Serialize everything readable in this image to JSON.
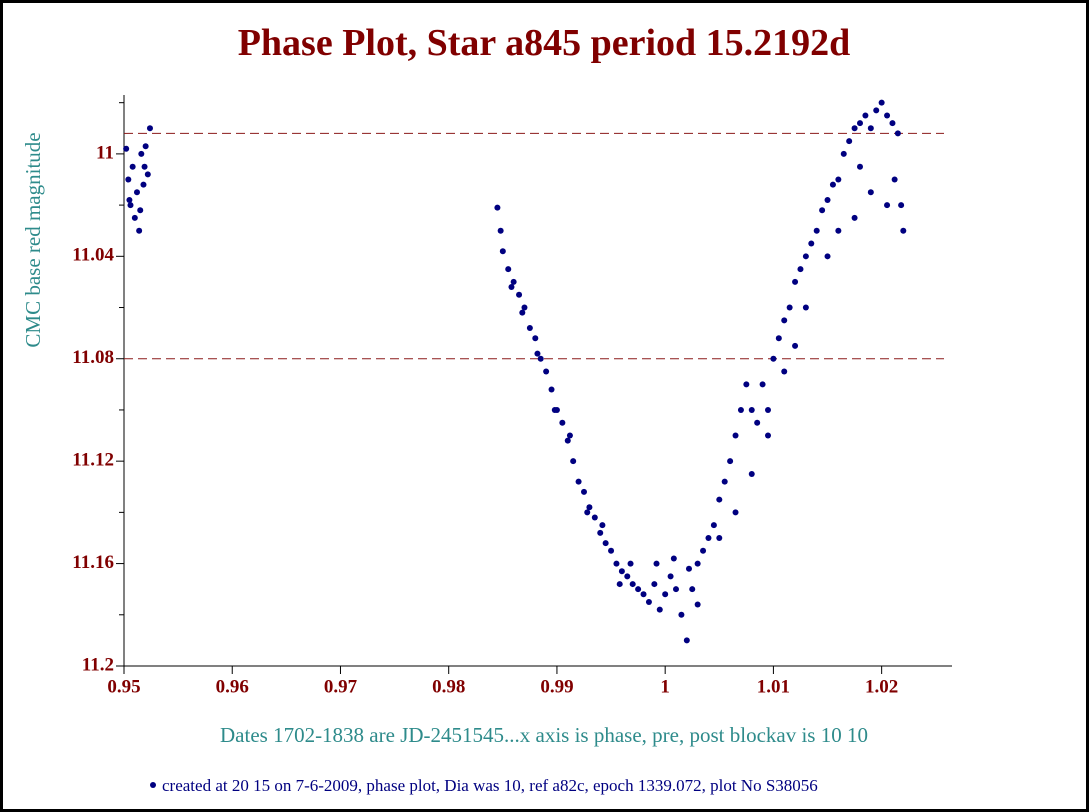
{
  "chart_data": {
    "type": "scatter",
    "title": "Phase Plot, Star a845 period 15.2192d",
    "y_label": "CMC base red magnitude",
    "x_label": "Dates  1702-1838 are JD-2451545...x axis is phase, pre, post blockav is 10 10",
    "footnote": "created at 20 15 on 7-6-2009,  phase plot, Dia was 10, ref a82c, epoch 1339.072,  plot No S38056",
    "xlim": [
      0.95,
      1.0265
    ],
    "ylim": [
      10.977,
      11.2
    ],
    "y_inverted": true,
    "xticks": [
      0.95,
      0.96,
      0.97,
      0.98,
      0.99,
      1,
      1.01,
      1.02
    ],
    "yticks": [
      11,
      11.04,
      11.08,
      11.12,
      11.16,
      11.2
    ],
    "yminor": [
      10.98,
      11.02,
      11.06,
      11.1,
      11.14,
      11.18
    ],
    "hlines": [
      10.992,
      11.08
    ],
    "hline_color": "#8b1a1a",
    "color": "#000080",
    "x": [
      0.9502,
      0.9504,
      0.9506,
      0.9508,
      0.951,
      0.9512,
      0.9514,
      0.9516,
      0.9518,
      0.952,
      0.9522,
      0.9524,
      0.9505,
      0.9515,
      0.9519,
      0.9845,
      0.9848,
      0.985,
      0.9855,
      0.986,
      0.9865,
      0.987,
      0.9875,
      0.988,
      0.9885,
      0.989,
      0.9895,
      0.99,
      0.9905,
      0.991,
      0.9915,
      0.992,
      0.9925,
      0.993,
      0.9935,
      0.994,
      0.9945,
      0.995,
      0.9955,
      0.996,
      0.9965,
      0.997,
      0.9975,
      0.9858,
      0.9868,
      0.9882,
      0.9898,
      0.9912,
      0.9928,
      0.9942,
      0.9958,
      0.9968,
      0.998,
      0.9985,
      0.999,
      0.9995,
      1.0,
      1.0005,
      1.001,
      1.0015,
      1.002,
      1.0022,
      1.0025,
      1.003,
      0.9992,
      1.0008,
      1.003,
      1.0035,
      1.004,
      1.0045,
      1.005,
      1.0055,
      1.006,
      1.0065,
      1.007,
      1.0075,
      1.008,
      1.0085,
      1.009,
      1.0095,
      1.01,
      1.0105,
      1.011,
      1.0115,
      1.012,
      1.0125,
      1.013,
      1.0135,
      1.014,
      1.0145,
      1.015,
      1.0155,
      1.016,
      1.0165,
      1.017,
      1.0175,
      1.018,
      1.0185,
      1.019,
      1.0195,
      1.02,
      1.0205,
      1.021,
      1.0215,
      1.022,
      1.0218,
      1.0212,
      1.0205,
      1.019,
      1.018,
      1.0175,
      1.016,
      1.015,
      1.013,
      1.012,
      1.011,
      1.0095,
      1.008,
      1.0065,
      1.005
    ],
    "y": [
      10.998,
      11.01,
      11.02,
      11.005,
      11.025,
      11.015,
      11.03,
      11.0,
      11.012,
      10.997,
      11.008,
      10.99,
      11.018,
      11.022,
      11.005,
      11.021,
      11.03,
      11.038,
      11.045,
      11.05,
      11.055,
      11.06,
      11.068,
      11.072,
      11.08,
      11.085,
      11.092,
      11.1,
      11.105,
      11.112,
      11.12,
      11.128,
      11.132,
      11.138,
      11.142,
      11.148,
      11.152,
      11.155,
      11.16,
      11.163,
      11.165,
      11.168,
      11.17,
      11.052,
      11.062,
      11.078,
      11.1,
      11.11,
      11.14,
      11.145,
      11.168,
      11.16,
      11.172,
      11.175,
      11.168,
      11.178,
      11.172,
      11.165,
      11.17,
      11.18,
      11.19,
      11.162,
      11.17,
      11.176,
      11.16,
      11.158,
      11.16,
      11.155,
      11.15,
      11.145,
      11.135,
      11.128,
      11.12,
      11.11,
      11.1,
      11.09,
      11.1,
      11.105,
      11.09,
      11.1,
      11.08,
      11.072,
      11.065,
      11.06,
      11.05,
      11.045,
      11.04,
      11.035,
      11.03,
      11.022,
      11.018,
      11.012,
      11.01,
      11.0,
      10.995,
      10.99,
      10.988,
      10.985,
      10.99,
      10.983,
      10.98,
      10.985,
      10.988,
      10.992,
      11.03,
      11.02,
      11.01,
      11.02,
      11.015,
      11.005,
      11.025,
      11.03,
      11.04,
      11.06,
      11.075,
      11.085,
      11.11,
      11.125,
      11.14,
      11.15
    ]
  }
}
